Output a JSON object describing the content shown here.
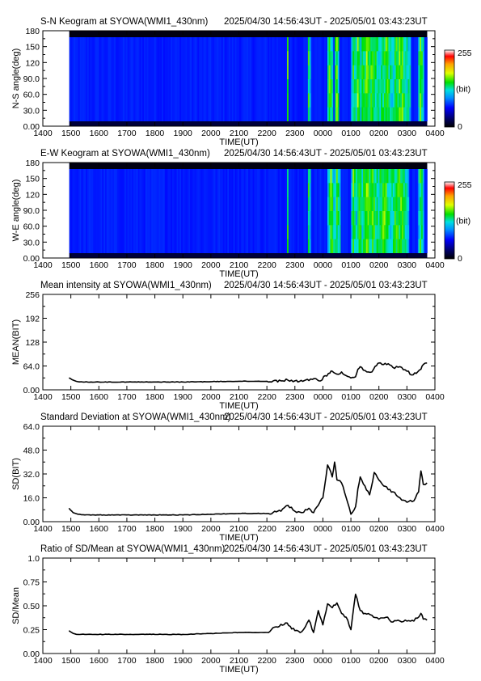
{
  "chart_data": [
    {
      "type": "heatmap",
      "title": "S-N Keogram at SYOWA(WMI1_430nm)",
      "time_range": "2025/04/30 14:56:43UT - 2025/05/01 03:43:23UT",
      "xlabel": "TIME(UT)",
      "ylabel": "N-S angle(deg)",
      "x_ticks": [
        "1400",
        "1500",
        "1600",
        "1700",
        "1800",
        "1900",
        "2000",
        "2100",
        "2200",
        "2300",
        "0000",
        "0100",
        "0200",
        "0300",
        "0400"
      ],
      "y_ticks": [
        "0.00",
        "30.0",
        "60.0",
        "90.0",
        "120",
        "150",
        "180"
      ],
      "ylim": [
        0,
        180
      ],
      "colorbar": {
        "min": "0",
        "max": "255",
        "unit": "(bit)"
      },
      "data_start": "14:56:43",
      "data_end": "03:43:23",
      "bright_times": [
        22.75,
        23.5,
        0.25,
        0.5,
        1.1,
        1.25,
        1.6,
        1.8,
        2.25,
        2.75,
        3.5
      ],
      "bright_widths": [
        0.04,
        0.05,
        0.12,
        0.1,
        0.08,
        0.1,
        0.35,
        0.3,
        0.3,
        0.4,
        0.1
      ]
    },
    {
      "type": "heatmap",
      "title": "E-W Keogram at SYOWA(WMI1_430nm)",
      "time_range": "2025/04/30 14:56:43UT - 2025/05/01 03:43:23UT",
      "xlabel": "TIME(UT)",
      "ylabel": "W-E angle(deg)",
      "x_ticks": [
        "1400",
        "1500",
        "1600",
        "1700",
        "1800",
        "1900",
        "2000",
        "2100",
        "2200",
        "2300",
        "0000",
        "0100",
        "0200",
        "0300",
        "0400"
      ],
      "y_ticks": [
        "0.00",
        "30.0",
        "60.0",
        "90.0",
        "120",
        "150",
        "180"
      ],
      "ylim": [
        0,
        180
      ],
      "colorbar": {
        "min": "0",
        "max": "255",
        "unit": "(bit)"
      },
      "data_start": "14:56:43",
      "data_end": "03:43:23",
      "bright_times": [
        22.75,
        23.5,
        0.3,
        0.5,
        1.1,
        1.3,
        1.6,
        1.8,
        2.2,
        2.7,
        3.5
      ],
      "bright_widths": [
        0.04,
        0.05,
        0.12,
        0.12,
        0.08,
        0.12,
        0.35,
        0.3,
        0.3,
        0.4,
        0.1
      ]
    },
    {
      "type": "line",
      "title": "Mean intensity at SYOWA(WMI1_430nm)",
      "time_range": "2025/04/30 14:56:43UT - 2025/05/01 03:43:23UT",
      "xlabel": "TIME(UT)",
      "ylabel": "MEAN(BIT)",
      "x_ticks": [
        "1400",
        "1500",
        "1600",
        "1700",
        "1800",
        "1900",
        "2000",
        "2100",
        "2200",
        "2300",
        "0000",
        "0100",
        "0200",
        "0300",
        "0400"
      ],
      "y_ticks": [
        "0.00",
        "64.0",
        "128",
        "192",
        "256"
      ],
      "ylim": [
        0,
        256
      ],
      "x": [
        "14:56",
        "15:05",
        "15:15",
        "15:30",
        "16:00",
        "17:00",
        "18:00",
        "19:00",
        "20:00",
        "21:00",
        "22:00",
        "22:30",
        "22:45",
        "23:00",
        "23:30",
        "23:45",
        "23:55",
        "00:05",
        "00:15",
        "00:20",
        "00:30",
        "00:40",
        "00:50",
        "01:00",
        "01:10",
        "01:15",
        "01:20",
        "01:30",
        "01:45",
        "01:55",
        "02:00",
        "02:10",
        "02:20",
        "02:30",
        "02:45",
        "03:00",
        "03:10",
        "03:20",
        "03:30",
        "03:35",
        "03:43"
      ],
      "values": [
        32,
        26,
        22,
        21,
        21,
        21,
        21,
        21,
        22,
        23,
        23,
        24,
        26,
        24,
        25,
        30,
        24,
        38,
        45,
        50,
        42,
        48,
        38,
        32,
        35,
        55,
        62,
        52,
        48,
        65,
        72,
        68,
        70,
        60,
        62,
        50,
        40,
        44,
        55,
        68,
        72
      ]
    },
    {
      "type": "line",
      "title": "Standard Deviation at SYOWA(WMI1_430nm)",
      "time_range": "2025/04/30 14:56:43UT - 2025/05/01 03:43:23UT",
      "xlabel": "TIME(UT)",
      "ylabel": "SD(BIT)",
      "x_ticks": [
        "1400",
        "1500",
        "1600",
        "1700",
        "1800",
        "1900",
        "2000",
        "2100",
        "2200",
        "2300",
        "0000",
        "0100",
        "0200",
        "0300",
        "0400"
      ],
      "y_ticks": [
        "0.00",
        "16.0",
        "32.0",
        "48.0",
        "64.0"
      ],
      "ylim": [
        0,
        64
      ],
      "x": [
        "14:56",
        "15:05",
        "15:15",
        "15:30",
        "16:00",
        "17:00",
        "18:00",
        "19:00",
        "20:00",
        "21:00",
        "22:00",
        "22:30",
        "22:45",
        "23:00",
        "23:15",
        "23:30",
        "23:40",
        "23:50",
        "00:00",
        "00:10",
        "00:20",
        "00:25",
        "00:30",
        "00:40",
        "00:50",
        "01:00",
        "01:10",
        "01:15",
        "01:20",
        "01:30",
        "01:40",
        "01:50",
        "02:00",
        "02:10",
        "02:30",
        "02:45",
        "03:00",
        "03:15",
        "03:25",
        "03:30",
        "03:35",
        "03:43"
      ],
      "values": [
        9,
        6,
        5,
        4.5,
        4.5,
        4.5,
        4.5,
        4.5,
        5,
        5.5,
        5.5,
        7,
        11,
        7,
        6,
        9,
        6,
        11,
        16,
        38,
        30,
        40,
        28,
        26,
        16,
        5,
        10,
        22,
        30,
        24,
        18,
        33,
        28,
        24,
        20,
        16,
        13,
        14,
        20,
        34,
        25,
        26
      ]
    },
    {
      "type": "line",
      "title": "Ratio of SD/Mean at SYOWA(WMI1_430nm)",
      "time_range": "2025/04/30 14:56:43UT - 2025/05/01 03:43:23UT",
      "xlabel": "TIME(UT)",
      "ylabel": "SD/Mean",
      "x_ticks": [
        "1400",
        "1500",
        "1600",
        "1700",
        "1800",
        "1900",
        "2000",
        "2100",
        "2200",
        "2300",
        "0000",
        "0100",
        "0200",
        "0300",
        "0400"
      ],
      "y_ticks": [
        "0.00",
        "0.25",
        "0.50",
        "0.75",
        "1.0"
      ],
      "ylim": [
        0,
        1
      ],
      "x": [
        "14:56",
        "15:05",
        "15:15",
        "15:30",
        "16:00",
        "17:00",
        "18:00",
        "19:00",
        "20:00",
        "21:00",
        "22:00",
        "22:20",
        "22:40",
        "23:00",
        "23:15",
        "23:30",
        "23:40",
        "23:50",
        "00:00",
        "00:10",
        "00:20",
        "00:30",
        "00:40",
        "00:50",
        "01:00",
        "01:10",
        "01:20",
        "01:30",
        "01:45",
        "02:00",
        "02:15",
        "02:30",
        "02:45",
        "03:00",
        "03:15",
        "03:30",
        "03:35",
        "03:43"
      ],
      "values": [
        0.24,
        0.21,
        0.2,
        0.2,
        0.2,
        0.2,
        0.2,
        0.2,
        0.21,
        0.22,
        0.22,
        0.28,
        0.32,
        0.24,
        0.23,
        0.35,
        0.22,
        0.45,
        0.3,
        0.52,
        0.48,
        0.53,
        0.42,
        0.38,
        0.25,
        0.62,
        0.45,
        0.42,
        0.4,
        0.36,
        0.38,
        0.33,
        0.34,
        0.34,
        0.34,
        0.42,
        0.36,
        0.35
      ]
    }
  ]
}
